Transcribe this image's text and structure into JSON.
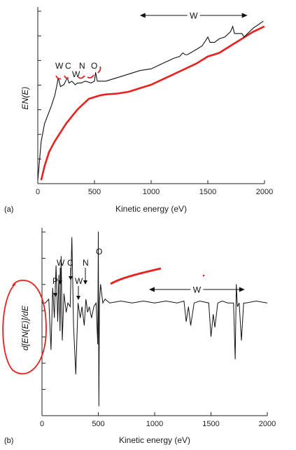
{
  "colors": {
    "spectrum": "#111111",
    "annotation": "#e8201e",
    "axis": "#222222"
  },
  "chart_data": [
    {
      "type": "line",
      "panel_label": "(a)",
      "xlabel": "Kinetic energy (eV)",
      "ylabel": "EN(E)",
      "xlim": [
        0,
        2000
      ],
      "xticks": [
        0,
        500,
        1000,
        1500,
        2000
      ],
      "yticks_shown": false,
      "peak_labels": [
        {
          "text": "W",
          "x": 180
        },
        {
          "text": "C",
          "x": 265
        },
        {
          "text": "N",
          "x": 385
        },
        {
          "text": "W",
          "x": 325
        },
        {
          "text": "O",
          "x": 510
        }
      ],
      "range_label": {
        "text": "W",
        "x1": 900,
        "x2": 1850
      },
      "series": [
        {
          "x": [
            0,
            30,
            60,
            90,
            120,
            150,
            170,
            180,
            200,
            230,
            260,
            275,
            300,
            330,
            350,
            380,
            420,
            470,
            500,
            510,
            525,
            600,
            700,
            800,
            900,
            1000,
            1100,
            1200,
            1250,
            1280,
            1300,
            1320,
            1400,
            1450,
            1480,
            1500,
            1520,
            1560,
            1600,
            1650,
            1700,
            1720,
            1735,
            1780,
            1800,
            1820,
            1900,
            1990
          ],
          "y": [
            2,
            24,
            34,
            39,
            44,
            50,
            56,
            60,
            55,
            56,
            60,
            57,
            58,
            56,
            57,
            57,
            58,
            57,
            58,
            63,
            58,
            58,
            60,
            62,
            64,
            65,
            68,
            71,
            72,
            74,
            73,
            73,
            76,
            78,
            81,
            83,
            80,
            80,
            82,
            83,
            86,
            89,
            85,
            85,
            85,
            83,
            88,
            92
          ]
        },
        {
          "x": [
            30,
            60,
            100,
            150,
            200,
            250,
            300,
            350,
            400,
            450,
            500,
            550,
            600,
            700,
            800,
            900,
            1000,
            1100,
            1200,
            1300,
            1400,
            1500,
            1600,
            1700,
            1800,
            1900,
            2000
          ],
          "y": [
            2,
            10,
            18,
            24,
            29,
            34,
            38,
            42,
            45,
            48,
            49,
            50,
            50.5,
            51,
            52,
            54,
            56,
            59,
            62,
            65,
            68,
            72,
            74,
            78,
            82,
            86,
            89
          ]
        }
      ]
    },
    {
      "type": "line",
      "panel_label": "(b)",
      "xlabel": "Kinetic energy (eV)",
      "ylabel": "d[EN(E)]/dE",
      "xlim": [
        0,
        2000
      ],
      "xticks": [
        0,
        500,
        1000,
        1500,
        2000
      ],
      "yticks_shown": false,
      "peak_labels": [
        {
          "text": "P",
          "x": 115
        },
        {
          "text": "W",
          "x": 175
        },
        {
          "text": "C",
          "x": 265
        },
        {
          "text": "W",
          "x": 345
        },
        {
          "text": "N",
          "x": 390
        },
        {
          "text": "O",
          "x": 505
        }
      ],
      "range_label": {
        "text": "W",
        "x1": 950,
        "x2": 1800
      },
      "series": [
        {
          "x": [
            0,
            30,
            60,
            80,
            95,
            110,
            125,
            140,
            150,
            160,
            170,
            180,
            195,
            215,
            230,
            250,
            265,
            280,
            300,
            320,
            340,
            355,
            375,
            390,
            405,
            420,
            440,
            460,
            480,
            495,
            500,
            505,
            510,
            520,
            540,
            560,
            600,
            700,
            800,
            900,
            1000,
            1100,
            1200,
            1260,
            1280,
            1300,
            1320,
            1350,
            1400,
            1480,
            1500,
            1520,
            1535,
            1560,
            1600,
            1650,
            1700,
            1715,
            1725,
            1735,
            1750,
            1770,
            1790,
            1810,
            1900,
            2000
          ],
          "y": [
            60,
            60,
            62,
            35,
            68,
            52,
            80,
            50,
            75,
            45,
            85,
            40,
            65,
            55,
            60,
            58,
            95,
            48,
            22,
            60,
            52,
            58,
            48,
            62,
            55,
            58,
            52,
            58,
            60,
            38,
            98,
            5,
            60,
            70,
            60,
            62,
            60,
            61,
            60,
            61,
            60,
            61,
            60,
            61,
            50,
            58,
            48,
            60,
            61,
            60,
            42,
            54,
            47,
            60,
            61,
            60,
            60,
            30,
            70,
            58,
            60,
            40,
            60,
            60,
            61,
            60
          ]
        }
      ]
    }
  ]
}
